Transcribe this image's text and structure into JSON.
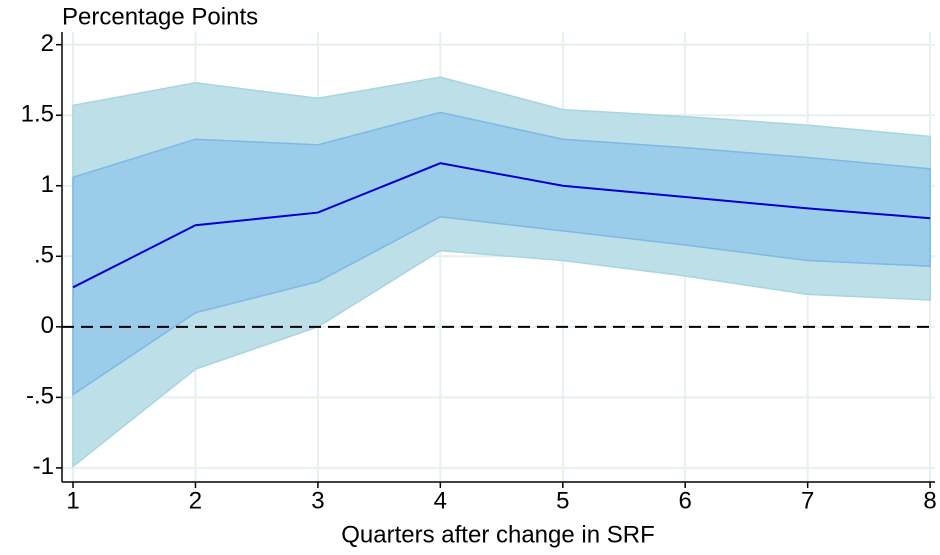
{
  "chart_data": {
    "type": "line",
    "y_title": "Percentage Points",
    "x_label": "Quarters after change in SRF",
    "x": [
      1,
      2,
      3,
      4,
      5,
      6,
      7,
      8
    ],
    "bands": [
      {
        "color": "#bddfe8",
        "edge": "#a9d4e2",
        "lower": [
          -0.99,
          -0.3,
          0.0,
          0.54,
          0.47,
          0.36,
          0.23,
          0.19
        ],
        "upper": [
          1.57,
          1.73,
          1.62,
          1.77,
          1.54,
          1.49,
          1.43,
          1.35
        ]
      },
      {
        "color": "#9bcdeb",
        "edge": "#7db8e6",
        "lower": [
          -0.48,
          0.1,
          0.32,
          0.78,
          0.68,
          0.58,
          0.47,
          0.43
        ],
        "upper": [
          1.06,
          1.33,
          1.29,
          1.52,
          1.33,
          1.27,
          1.2,
          1.12
        ]
      }
    ],
    "series": [
      {
        "color": "#0000cd",
        "values": [
          0.28,
          0.72,
          0.81,
          1.16,
          1.0,
          0.92,
          0.84,
          0.77
        ]
      }
    ],
    "hline": 0,
    "xlim": [
      0.91,
      8.04
    ],
    "ylim": [
      -1.1,
      2.09
    ],
    "xticks": [
      1,
      2,
      3,
      4,
      5,
      6,
      7,
      8
    ],
    "yticks": [
      -1,
      {
        "value": -0.5,
        "label": "-.5"
      },
      0,
      {
        "value": 0.5,
        "label": ".5"
      },
      1,
      1.5,
      2
    ],
    "grid": true
  }
}
